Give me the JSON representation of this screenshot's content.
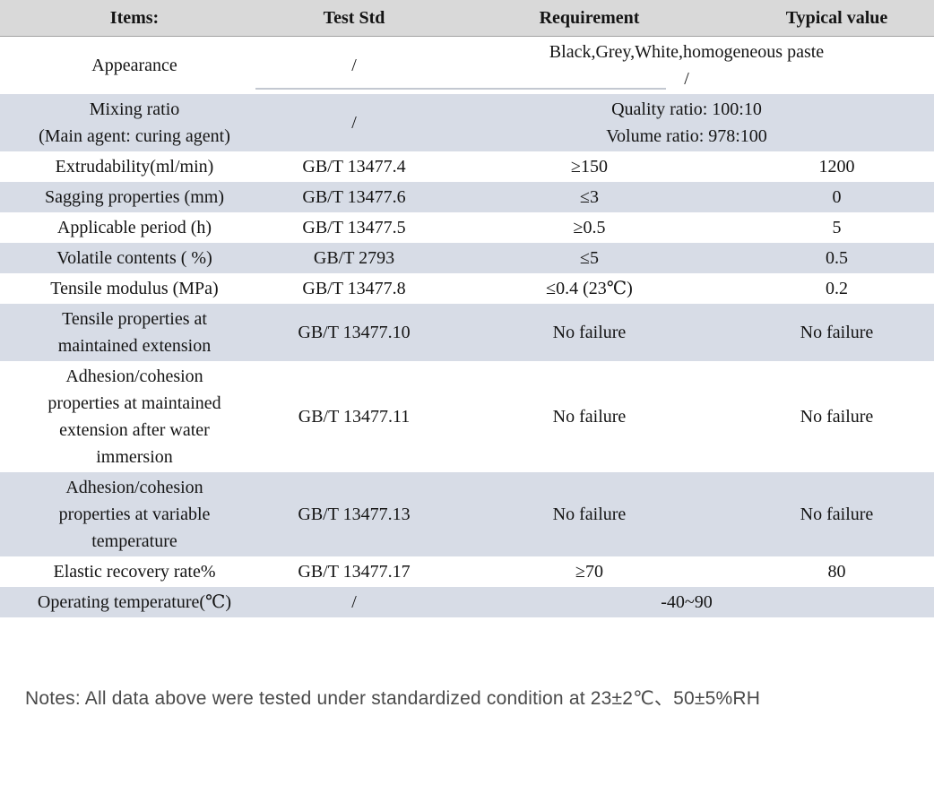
{
  "table": {
    "columns": [
      "Items:",
      "Test Std",
      "Requirement",
      "Typical value"
    ],
    "rows": [
      {
        "item": "Appearance",
        "test_std": "/",
        "requirement": "Black,Grey,White,homogeneous paste\n/"
      },
      {
        "item": "Mixing ratio\n(Main agent: curing agent)",
        "test_std": "/",
        "requirement": "Quality ratio: 100:10\nVolume ratio: 978:100"
      },
      {
        "item": "Extrudability(ml/min)",
        "test_std": "GB/T 13477.4",
        "requirement": "≥150",
        "typical_value": "1200"
      },
      {
        "item": "Sagging properties (mm)",
        "test_std": "GB/T 13477.6",
        "requirement": "≤3",
        "typical_value": "0"
      },
      {
        "item": "Applicable period (h)",
        "test_std": "GB/T 13477.5",
        "requirement": "≥0.5",
        "typical_value": "5"
      },
      {
        "item": "Volatile contents ( %)",
        "test_std": "GB/T 2793",
        "requirement": "≤5",
        "typical_value": "0.5"
      },
      {
        "item": "Tensile modulus (MPa)",
        "test_std": "GB/T 13477.8",
        "requirement": "≤0.4 (23℃)",
        "typical_value": "0.2"
      },
      {
        "item": "Tensile properties at\nmaintained extension",
        "test_std": "GB/T 13477.10",
        "requirement": "No failure",
        "typical_value": "No failure"
      },
      {
        "item": "Adhesion/cohesion\nproperties at maintained\nextension after water\nimmersion",
        "test_std": "GB/T 13477.11",
        "requirement": "No failure",
        "typical_value": "No failure"
      },
      {
        "item": "Adhesion/cohesion\nproperties at variable\ntemperature",
        "test_std": "GB/T 13477.13",
        "requirement": "No failure",
        "typical_value": "No failure"
      },
      {
        "item": "Elastic recovery rate%",
        "test_std": "GB/T 13477.17",
        "requirement": "≥70",
        "typical_value": "80"
      },
      {
        "item": "Operating temperature(℃)",
        "test_std": "/",
        "requirement": "-40~90"
      }
    ]
  },
  "notes": "Notes: All data above were tested under standardized condition at 23±2℃、50±5%RH",
  "colors": {
    "header_bg": "#d9d9d9",
    "row_alt_bg": "#d7dce6",
    "table_text": "#141414",
    "notes_text": "#4a4a4a"
  }
}
